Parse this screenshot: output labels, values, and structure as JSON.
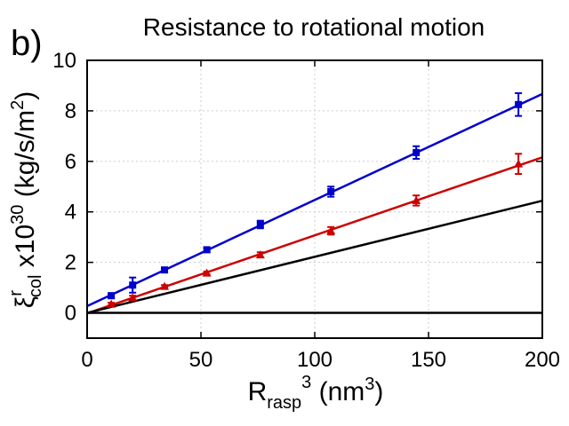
{
  "panel_label": "b)",
  "chart_data": {
    "type": "scatter",
    "title": "Resistance to rotational motion",
    "xlabel": {
      "base": "R",
      "sub": "rasp",
      "sup": "3",
      "rest": " (nm",
      "rest_sup": "3",
      "close": ")"
    },
    "ylabel": {
      "base": "ξ",
      "sup": "r",
      "sub": "col",
      "rest": " x10",
      "rest_sup": "30",
      "rest2": " (kg/s/m",
      "rest2_sup": "2",
      "close": ")"
    },
    "xlim": [
      0,
      200
    ],
    "ylim": [
      -1,
      10
    ],
    "xticks": [
      0,
      50,
      100,
      150,
      200
    ],
    "yticks": [
      0,
      2,
      4,
      6,
      8,
      10
    ],
    "grid": true,
    "series": [
      {
        "color": "#0000cc",
        "marker": "square",
        "points": [
          {
            "x": 10.6,
            "y": 0.68,
            "err": 0.1
          },
          {
            "x": 20.0,
            "y": 1.1,
            "err": 0.3
          },
          {
            "x": 34.0,
            "y": 1.7,
            "err": 0.08
          },
          {
            "x": 52.6,
            "y": 2.5,
            "err": 0.08
          },
          {
            "x": 76.1,
            "y": 3.5,
            "err": 0.15
          },
          {
            "x": 107.1,
            "y": 4.8,
            "err": 0.2
          },
          {
            "x": 144.6,
            "y": 6.35,
            "err": 0.25
          },
          {
            "x": 189.5,
            "y": 8.25,
            "err": 0.45
          }
        ],
        "fit": {
          "x": [
            0,
            200
          ],
          "y": [
            0.27,
            8.67
          ]
        }
      },
      {
        "color": "#cc0000",
        "marker": "triangle",
        "points": [
          {
            "x": 10.6,
            "y": 0.35,
            "err": 0.05
          },
          {
            "x": 20.0,
            "y": 0.6,
            "err": 0.08
          },
          {
            "x": 34.0,
            "y": 1.05,
            "err": 0.05
          },
          {
            "x": 52.6,
            "y": 1.58,
            "err": 0.06
          },
          {
            "x": 76.1,
            "y": 2.3,
            "err": 0.1
          },
          {
            "x": 107.1,
            "y": 3.25,
            "err": 0.15
          },
          {
            "x": 144.6,
            "y": 4.45,
            "err": 0.2
          },
          {
            "x": 189.5,
            "y": 5.9,
            "err": 0.4
          }
        ],
        "fit": {
          "x": [
            0,
            200
          ],
          "y": [
            -0.02,
            6.16
          ]
        }
      },
      {
        "color": "#000000",
        "marker": "none",
        "points": [],
        "fit": {
          "x": [
            0,
            200
          ],
          "y": [
            0,
            4.44
          ]
        }
      },
      {
        "color": "#000000",
        "marker": "none",
        "points": [],
        "fit": {
          "x": [
            0,
            200
          ],
          "y": [
            0,
            0
          ]
        }
      }
    ]
  }
}
